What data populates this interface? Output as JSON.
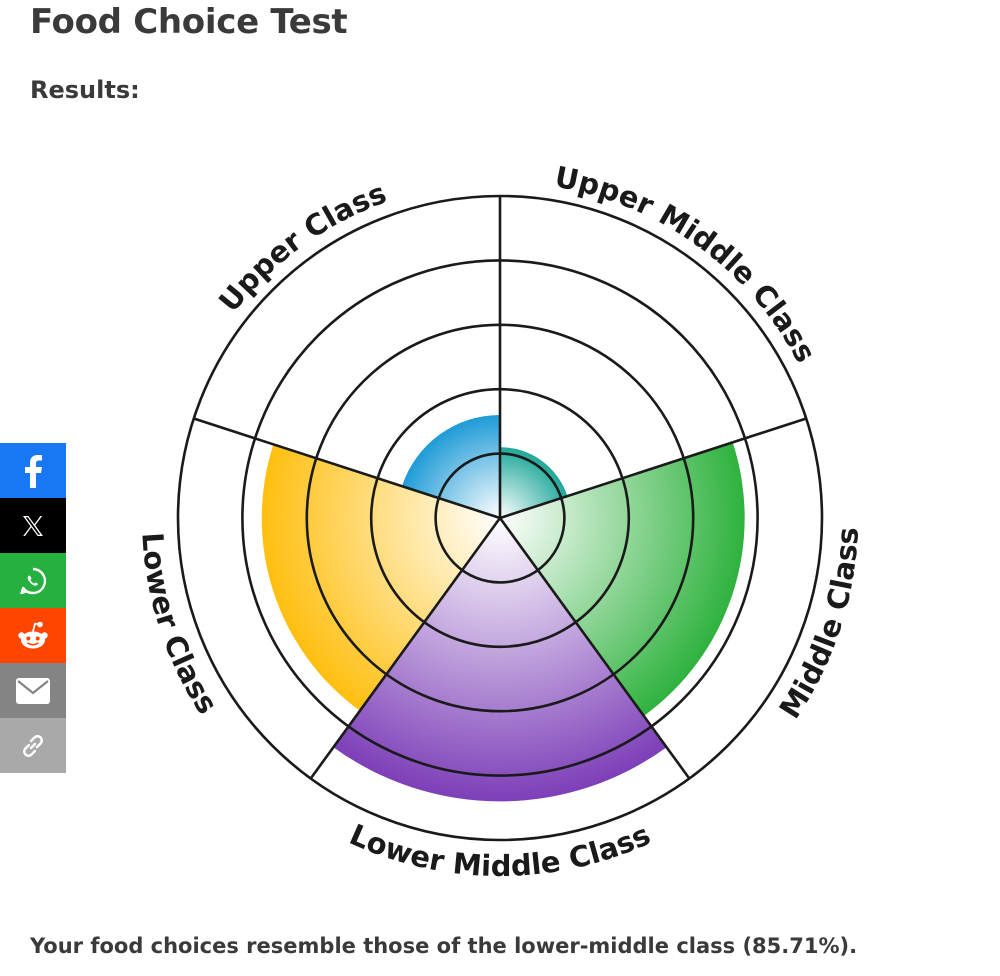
{
  "page": {
    "title": "Food Choice Test",
    "results_label": "Results:",
    "result_sentence": "Your food choices resemble those of the lower-middle class (85.71%)."
  },
  "share": [
    {
      "id": "facebook",
      "icon": "facebook-icon",
      "color": "#1877f2"
    },
    {
      "id": "x",
      "icon": "x-icon",
      "color": "#000000"
    },
    {
      "id": "whatsapp",
      "icon": "whatsapp-icon",
      "color": "#25b03f"
    },
    {
      "id": "reddit",
      "icon": "reddit-icon",
      "color": "#ff4500"
    },
    {
      "id": "email",
      "icon": "email-icon",
      "color": "#848484"
    },
    {
      "id": "copy-link",
      "icon": "link-icon",
      "color": "#a9a9a9"
    }
  ],
  "chart_data": {
    "type": "polar-area",
    "grid": true,
    "rings": 5,
    "scale_max": 5,
    "categories": [
      "Upper Class",
      "Upper Middle Class",
      "Middle Class",
      "Lower Middle Class",
      "Lower Class"
    ],
    "values": [
      1.6,
      1.1,
      3.8,
      4.4,
      3.7
    ],
    "colors": [
      "#1e9bd7",
      "#1fa89a",
      "#2fb23e",
      "#7d3fb8",
      "#ffbf10"
    ]
  }
}
